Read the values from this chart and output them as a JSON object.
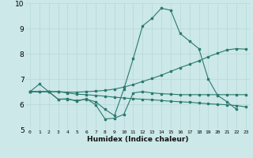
{
  "xlabel": "Humidex (Indice chaleur)",
  "bg_color": "#cce8e8",
  "line_color": "#2a7a6e",
  "grid_color": "#b8d8d8",
  "xlim": [
    -0.5,
    23.5
  ],
  "ylim": [
    5,
    10
  ],
  "xticks": [
    0,
    1,
    2,
    3,
    4,
    5,
    6,
    7,
    8,
    9,
    10,
    11,
    12,
    13,
    14,
    15,
    16,
    17,
    18,
    19,
    20,
    21,
    22,
    23
  ],
  "yticks": [
    5,
    6,
    7,
    8,
    9,
    10
  ],
  "series1_x": [
    0,
    1,
    2,
    3,
    4,
    5,
    6,
    7,
    8,
    9,
    10,
    11,
    12,
    13,
    14,
    15,
    16,
    17,
    18,
    19,
    20,
    21,
    22
  ],
  "series1_y": [
    6.5,
    6.8,
    6.5,
    6.2,
    6.2,
    6.15,
    6.2,
    6.1,
    5.8,
    5.55,
    6.6,
    7.8,
    9.1,
    9.4,
    9.8,
    9.72,
    8.8,
    8.5,
    8.2,
    7.0,
    6.35,
    6.1,
    5.8
  ],
  "series2_x": [
    0,
    1,
    2,
    3,
    4,
    5,
    6,
    7,
    8,
    9,
    10,
    11,
    12,
    13,
    14,
    15,
    16,
    17,
    18,
    19,
    20,
    21,
    22,
    23
  ],
  "series2_y": [
    6.5,
    6.5,
    6.5,
    6.5,
    6.45,
    6.4,
    6.38,
    6.35,
    6.32,
    6.28,
    6.25,
    6.22,
    6.2,
    6.18,
    6.15,
    6.12,
    6.1,
    6.08,
    6.05,
    6.02,
    6.0,
    5.98,
    5.95,
    5.9
  ],
  "series3_x": [
    0,
    1,
    2,
    3,
    4,
    5,
    6,
    7,
    8,
    9,
    10,
    11,
    12,
    13,
    14,
    15,
    16,
    17,
    18,
    19,
    20,
    21,
    22,
    23
  ],
  "series3_y": [
    6.5,
    6.5,
    6.5,
    6.5,
    6.48,
    6.48,
    6.5,
    6.52,
    6.55,
    6.6,
    6.68,
    6.78,
    6.9,
    7.02,
    7.15,
    7.3,
    7.45,
    7.58,
    7.72,
    7.88,
    8.02,
    8.15,
    8.2,
    8.18
  ],
  "series4_x": [
    0,
    2,
    3,
    4,
    5,
    6,
    7,
    8,
    9,
    10,
    11,
    12,
    13,
    14,
    15,
    16,
    17,
    18,
    19,
    20,
    21,
    22,
    23
  ],
  "series4_y": [
    6.5,
    6.5,
    6.2,
    6.22,
    6.12,
    6.22,
    5.98,
    5.42,
    5.45,
    5.6,
    6.45,
    6.5,
    6.45,
    6.42,
    6.4,
    6.38,
    6.38,
    6.38,
    6.38,
    6.38,
    6.38,
    6.38,
    6.38
  ]
}
